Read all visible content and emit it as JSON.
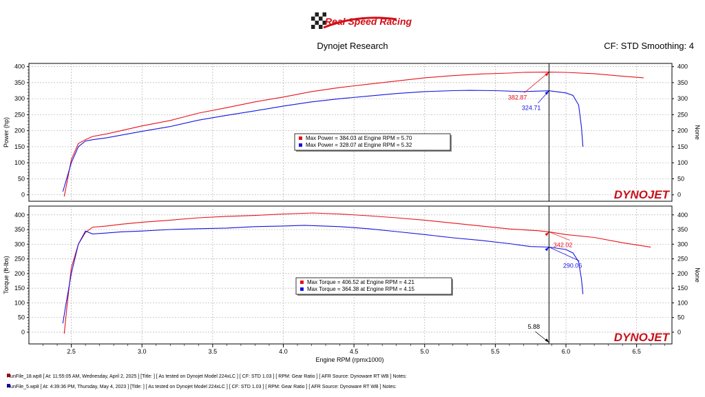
{
  "header": {
    "logo_text": "Real Speed Racing",
    "title": "Dynojet Research",
    "cf_label": "CF: STD Smoothing: 4"
  },
  "colors": {
    "run1": "#e8101a",
    "run2": "#1414e0",
    "grid": "#b0b0b0"
  },
  "chart_data": [
    {
      "type": "line",
      "ylabel": "Power (hp)",
      "y2label": "None",
      "yticks": [
        0,
        50,
        100,
        150,
        200,
        250,
        300,
        350,
        400
      ],
      "ylim": [
        -20,
        410
      ],
      "xlim": [
        2.2,
        6.75
      ],
      "grid": true,
      "watermark": "DYNOJET",
      "series": [
        {
          "color": "#e8101a",
          "x": [
            2.45,
            2.47,
            2.5,
            2.55,
            2.6,
            2.65,
            2.75,
            2.85,
            3.0,
            3.2,
            3.4,
            3.6,
            3.8,
            4.0,
            4.2,
            4.4,
            4.6,
            4.8,
            5.0,
            5.2,
            5.4,
            5.6,
            5.7,
            5.88,
            6.0,
            6.2,
            6.4,
            6.55
          ],
          "y": [
            -5,
            40,
            110,
            160,
            172,
            182,
            190,
            200,
            215,
            232,
            255,
            272,
            290,
            305,
            322,
            335,
            345,
            355,
            365,
            372,
            377,
            380,
            382,
            382.87,
            382,
            378,
            370,
            365
          ]
        },
        {
          "color": "#1414e0",
          "x": [
            2.44,
            2.46,
            2.5,
            2.55,
            2.6,
            2.65,
            2.75,
            2.85,
            3.0,
            3.2,
            3.4,
            3.6,
            3.8,
            4.0,
            4.2,
            4.4,
            4.6,
            4.8,
            5.0,
            5.2,
            5.32,
            5.5,
            5.7,
            5.88,
            6.0,
            6.05,
            6.09,
            6.11,
            6.12
          ],
          "y": [
            10,
            40,
            100,
            150,
            168,
            172,
            178,
            186,
            198,
            213,
            233,
            248,
            262,
            277,
            290,
            300,
            308,
            316,
            322,
            325,
            326,
            325,
            322,
            324.71,
            318,
            310,
            280,
            210,
            150
          ]
        }
      ],
      "legend": [
        {
          "color": "#e8101a",
          "text": "Max Power = 384.03 at Engine RPM = 5.70"
        },
        {
          "color": "#1414e0",
          "text": "Max Power = 328.07 at Engine RPM = 5.32"
        }
      ],
      "markers": [
        {
          "color": "#e8101a",
          "x": 5.88,
          "y": 382.87,
          "label": "382.87"
        },
        {
          "color": "#1414e0",
          "x": 5.88,
          "y": 324.71,
          "label": "324.71"
        }
      ]
    },
    {
      "type": "line",
      "ylabel": "Torque (ft-lbs)",
      "y2label": "None",
      "xlabel": "Engine RPM (rpmx1000)",
      "yticks": [
        0,
        50,
        100,
        150,
        200,
        250,
        300,
        350,
        400
      ],
      "xticks": [
        2.5,
        3.0,
        3.5,
        4.0,
        4.5,
        5.0,
        5.5,
        6.0,
        6.5
      ],
      "ylim": [
        -40,
        430
      ],
      "xlim": [
        2.2,
        6.75
      ],
      "grid": true,
      "watermark": "DYNOJET",
      "cursor": {
        "x": 5.88,
        "label": "5.88"
      },
      "series": [
        {
          "color": "#e8101a",
          "x": [
            2.45,
            2.47,
            2.5,
            2.55,
            2.6,
            2.65,
            2.75,
            2.85,
            3.0,
            3.2,
            3.4,
            3.6,
            3.8,
            4.0,
            4.21,
            4.4,
            4.6,
            4.8,
            5.0,
            5.2,
            5.4,
            5.6,
            5.8,
            5.88,
            6.0,
            6.2,
            6.4,
            6.6
          ],
          "y": [
            -5,
            90,
            220,
            300,
            340,
            358,
            362,
            368,
            375,
            382,
            390,
            395,
            398,
            403,
            406.52,
            403,
            397,
            390,
            382,
            372,
            362,
            352,
            346,
            342.02,
            333,
            323,
            305,
            290
          ]
        },
        {
          "color": "#1414e0",
          "x": [
            2.44,
            2.46,
            2.5,
            2.55,
            2.6,
            2.65,
            2.75,
            2.85,
            3.0,
            3.2,
            3.4,
            3.6,
            3.8,
            4.0,
            4.15,
            4.4,
            4.6,
            4.8,
            5.0,
            5.2,
            5.4,
            5.6,
            5.75,
            5.88,
            6.0,
            6.05,
            6.09,
            6.11,
            6.12
          ],
          "y": [
            30,
            90,
            200,
            300,
            345,
            335,
            338,
            342,
            345,
            350,
            353,
            355,
            360,
            362,
            364.38,
            360,
            353,
            343,
            333,
            322,
            313,
            302,
            292,
            290.06,
            282,
            270,
            240,
            180,
            130
          ]
        }
      ],
      "legend": [
        {
          "color": "#e8101a",
          "text": "Max Torque = 406.52 at Engine RPM = 4.21"
        },
        {
          "color": "#1414e0",
          "text": "Max Torque = 364.38 at Engine RPM = 4.15"
        }
      ],
      "markers": [
        {
          "color": "#e8101a",
          "x": 5.88,
          "y": 342.02,
          "label": "342.02"
        },
        {
          "color": "#1414e0",
          "x": 5.88,
          "y": 290.06,
          "label": "290.06"
        }
      ]
    }
  ],
  "footer": {
    "run1": "RunFile_18.wp8 [ At: 11:55:05 AM, Wednesday, April 2, 2025 ] [Title: ]  [ As tested on Dynojet Model 224xLC ] [ CF: STD 1.03 ] [ RPM: Gear Ratio ] [ AFR Source: Dynoware RT WB ] Notes:",
    "run2": "RunFile_5.wp8 [ At: 4:39:36 PM, Thursday, May 4, 2023 ] [Title: ]  [ As tested on Dynojet Model 224xLC ] [ CF: STD 1.03 ] [ RPM: Gear Ratio ] [ AFR Source: Dynoware RT WB ] Notes:"
  }
}
